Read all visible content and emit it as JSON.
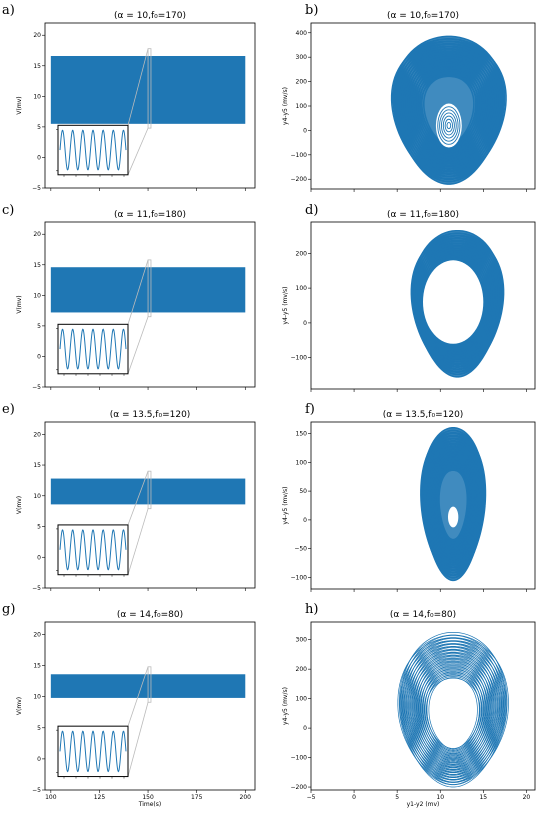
{
  "figure": {
    "series_color": "#1f77b4",
    "panels": [
      {
        "label": "a)",
        "title": "(α = 10,f₀=170)"
      },
      {
        "label": "b)",
        "title": "(α = 10,f₀=170)"
      },
      {
        "label": "c)",
        "title": "(α = 11,f₀=180)"
      },
      {
        "label": "d)",
        "title": "(α = 11,f₀=180)"
      },
      {
        "label": "e)",
        "title": "(α = 13.5,f₀=120)"
      },
      {
        "label": "f)",
        "title": "(α = 13.5,f₀=120)"
      },
      {
        "label": "g)",
        "title": "(α = 14,f₀=80)"
      },
      {
        "label": "h)",
        "title": "(α = 14,f₀=80)"
      }
    ]
  },
  "chart_data": [
    {
      "type": "area",
      "panel": "a",
      "title": "(α = 10,f₀=170)",
      "ylabel": "V(mv)",
      "xlabel": "",
      "xlim": [
        97,
        205
      ],
      "ylim": [
        -5,
        22
      ],
      "yticks": [
        -5,
        0,
        5,
        10,
        15,
        20
      ],
      "band": {
        "x": [
          100,
          200
        ],
        "y": [
          5.5,
          16.6
        ]
      },
      "inset": "sine"
    },
    {
      "type": "line",
      "panel": "b",
      "title": "(α = 10,f₀=170)",
      "ylabel": "y4-y5 (mv/s)",
      "xlabel": "",
      "xlim": [
        -5,
        21
      ],
      "ylim": [
        -240,
        440
      ],
      "yticks": [
        -200,
        -100,
        0,
        100,
        200,
        300,
        400
      ],
      "attractor": {
        "cx": 11,
        "cy": 85,
        "rx": 6.2,
        "ry_top": 300,
        "ry_bottom": 305,
        "hole": [
          11,
          20,
          1.5,
          90
        ]
      }
    },
    {
      "type": "area",
      "panel": "c",
      "title": "(α = 11,f₀=180)",
      "ylabel": "V(mv)",
      "xlabel": "",
      "xlim": [
        97,
        205
      ],
      "ylim": [
        -5,
        22
      ],
      "yticks": [
        -5,
        0,
        5,
        10,
        15,
        20
      ],
      "band": {
        "x": [
          100,
          200
        ],
        "y": [
          7.2,
          14.6
        ]
      },
      "inset": "sine"
    },
    {
      "type": "line",
      "panel": "d",
      "title": "(α = 11,f₀=180)",
      "ylabel": "y4-y5 (mv/s)",
      "xlabel": "",
      "xlim": [
        -5,
        21
      ],
      "ylim": [
        -190,
        290
      ],
      "yticks": [
        -100,
        0,
        100,
        200
      ],
      "attractor": {
        "cx": 12,
        "cy": 55,
        "rx": 5.0,
        "ry_top": 210,
        "ry_bottom": 210,
        "hole": [
          11.5,
          60,
          3.5,
          120
        ]
      }
    },
    {
      "type": "area",
      "panel": "e",
      "title": "(α = 13.5,f₀=120)",
      "ylabel": "V(mv)",
      "xlabel": "",
      "xlim": [
        97,
        205
      ],
      "ylim": [
        -5,
        22
      ],
      "yticks": [
        -5,
        0,
        5,
        10,
        15,
        20
      ],
      "band": {
        "x": [
          100,
          200
        ],
        "y": [
          8.6,
          12.8
        ]
      },
      "inset": "sine"
    },
    {
      "type": "line",
      "panel": "f",
      "title": "(α = 13.5,f₀=120)",
      "ylabel": "y4-y5 (mv/s)",
      "xlabel": "",
      "xlim": [
        -5,
        21
      ],
      "ylim": [
        -120,
        170
      ],
      "yticks": [
        -100,
        -50,
        0,
        50,
        100,
        150
      ],
      "attractor": {
        "cx": 11.5,
        "cy": 25,
        "rx": 3.5,
        "ry_top": 135,
        "ry_bottom": 130,
        "hole": [
          11.5,
          5,
          0.6,
          18
        ]
      }
    },
    {
      "type": "area",
      "panel": "g",
      "title": "(α = 14,f₀=80)",
      "ylabel": "V(mv)",
      "xlabel": "Time(s)",
      "xlim": [
        97,
        205
      ],
      "ylim": [
        -5,
        22
      ],
      "yticks": [
        -5,
        0,
        5,
        10,
        15,
        20
      ],
      "xticks": [
        100,
        125,
        150,
        175,
        200
      ],
      "band": {
        "x": [
          100,
          200
        ],
        "y": [
          9.8,
          13.6
        ]
      },
      "inset": "sine"
    },
    {
      "type": "line",
      "panel": "h",
      "title": "(α = 14,f₀=80)",
      "ylabel": "y4-y5 (mv/s)",
      "xlabel": "y1-y2 (mv)",
      "xlim": [
        -5,
        21
      ],
      "ylim": [
        -210,
        360
      ],
      "yticks": [
        -200,
        -100,
        0,
        100,
        200,
        300
      ],
      "xticks": [
        -5,
        0,
        5,
        10,
        15,
        20
      ],
      "attractor": {
        "cx": 11.5,
        "cy": 40,
        "rx": 6.0,
        "ry_top": 285,
        "ry_bottom": 240,
        "hole": null
      }
    }
  ]
}
